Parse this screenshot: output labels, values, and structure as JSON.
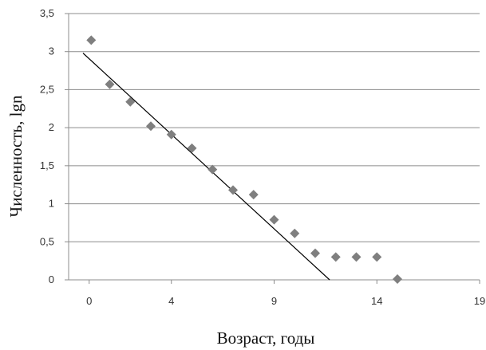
{
  "chart_data": {
    "type": "scatter",
    "title": "",
    "xlabel": "Возраст, годы",
    "ylabel": "Численность, lgn",
    "xlim": [
      -1,
      19
    ],
    "ylim": [
      0,
      3.5
    ],
    "x_ticks": [
      0,
      4,
      9,
      14,
      19
    ],
    "x_tick_labels": [
      "0",
      "4",
      "9",
      "14",
      "19"
    ],
    "y_ticks": [
      0,
      0.5,
      1,
      1.5,
      2,
      2.5,
      3,
      3.5
    ],
    "y_tick_labels": [
      "0",
      "0,5",
      "1",
      "1,5",
      "2",
      "2,5",
      "3",
      "3,5"
    ],
    "grid": "horizontal",
    "legend": "none",
    "series": [
      {
        "marker": "diamond",
        "color": "#7f7f7f",
        "points": [
          [
            0.1,
            3.15
          ],
          [
            1,
            2.57
          ],
          [
            2,
            2.34
          ],
          [
            3,
            2.02
          ],
          [
            4,
            1.91
          ],
          [
            5,
            1.73
          ],
          [
            6,
            1.45
          ],
          [
            7,
            1.18
          ],
          [
            8,
            1.12
          ],
          [
            9,
            0.79
          ],
          [
            10,
            0.61
          ],
          [
            11,
            0.35
          ],
          [
            12,
            0.3
          ],
          [
            13,
            0.3
          ],
          [
            14,
            0.3
          ],
          [
            15,
            0.01
          ]
        ]
      }
    ],
    "trendline": {
      "type": "linear",
      "color": "#000000",
      "x": [
        -0.3,
        11.7
      ],
      "y": [
        2.98,
        0.0
      ]
    }
  }
}
